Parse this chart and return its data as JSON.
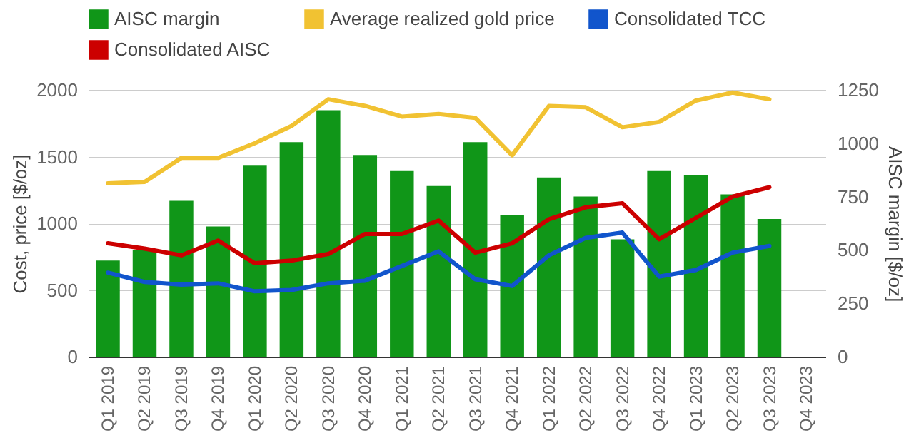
{
  "chart_data": {
    "type": "bar",
    "categories": [
      "Q1 2019",
      "Q2 2019",
      "Q3 2019",
      "Q4 2019",
      "Q1 2020",
      "Q2 2020",
      "Q3 2020",
      "Q4 2020",
      "Q1 2021",
      "Q2 2021",
      "Q3 2021",
      "Q4 2021",
      "Q1 2022",
      "Q2 2022",
      "Q3 2022",
      "Q4 2022",
      "Q1 2023",
      "Q2 2023",
      "Q3 2023",
      "Q4 2023"
    ],
    "ylabel": "Cost, price [$/oz]",
    "y2label": "AISC margin [$/oz]",
    "ylim": [
      0,
      2000
    ],
    "yticks": [
      0,
      500,
      1000,
      1500,
      2000
    ],
    "y2lim": [
      0,
      1250
    ],
    "y2ticks": [
      0,
      250,
      500,
      750,
      1000,
      1250
    ],
    "grid": "y",
    "legend": "top",
    "series": [
      {
        "name": "AISC margin",
        "axis": "y2",
        "color": "#109618",
        "values": [
          450,
          500,
          730,
          610,
          895,
          1005,
          1155,
          945,
          870,
          800,
          1005,
          665,
          840,
          750,
          550,
          870,
          850,
          760,
          645,
          null
        ]
      },
      {
        "name": "Average realized gold price",
        "type": "line",
        "color": "#f1c232",
        "values": [
          1300,
          1310,
          1490,
          1490,
          1600,
          1730,
          1930,
          1880,
          1800,
          1820,
          1790,
          1510,
          1880,
          1870,
          1720,
          1760,
          1920,
          1980,
          1930,
          null
        ]
      },
      {
        "name": "Consolidated TCC",
        "type": "line",
        "color": "#1155cc",
        "values": [
          630,
          560,
          540,
          550,
          490,
          500,
          550,
          570,
          680,
          790,
          580,
          530,
          760,
          890,
          930,
          600,
          650,
          780,
          830,
          null
        ]
      },
      {
        "name": "Consolidated AISC",
        "type": "line",
        "color": "#cc0000",
        "values": [
          850,
          810,
          760,
          870,
          700,
          720,
          770,
          920,
          920,
          1020,
          780,
          850,
          1030,
          1120,
          1150,
          880,
          1040,
          1200,
          1270,
          null
        ]
      }
    ]
  }
}
